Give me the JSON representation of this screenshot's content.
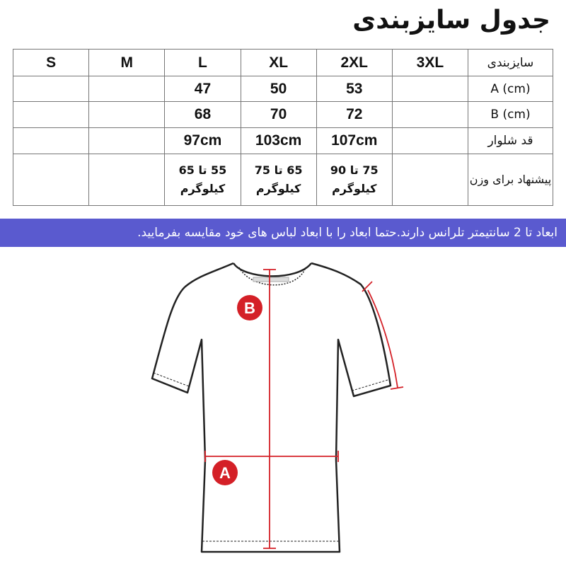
{
  "title": "جدول سایزبندی",
  "table": {
    "header": {
      "label": "سایزبندی",
      "sizes": [
        "3XL",
        "2XL",
        "XL",
        "L",
        "M",
        "S"
      ]
    },
    "rows": [
      {
        "label": "A (cm)",
        "values": [
          "",
          "53",
          "50",
          "47",
          "",
          ""
        ]
      },
      {
        "label": "B (cm)",
        "values": [
          "",
          "72",
          "70",
          "68",
          "",
          ""
        ]
      },
      {
        "label": "قد شلوار",
        "values": [
          "",
          "107cm",
          "103cm",
          "97cm",
          "",
          ""
        ]
      },
      {
        "label": "پیشنهاد برای وزن",
        "values": [
          "",
          "75 تا 90 کیلوگرم",
          "65 تا 75 کیلوگرم",
          "55 تا 65 کیلوگرم",
          "",
          ""
        ]
      }
    ]
  },
  "banner": {
    "text": "ابعاد تا 2 سانتیمتر تلرانس دارند.حتما ابعاد را با ابعاد لباس های خود مقایسه بفرمایید.",
    "color": "#5a5acf"
  },
  "diagram": {
    "label_a": "A",
    "label_b": "B",
    "marker_color": "#d42027"
  }
}
